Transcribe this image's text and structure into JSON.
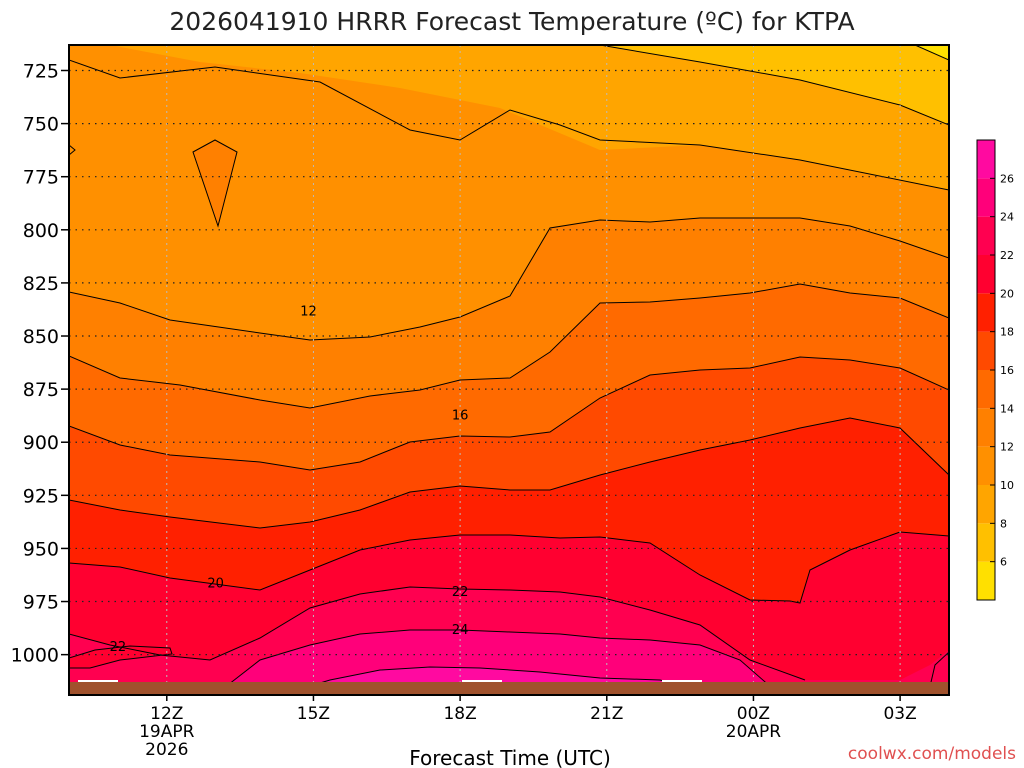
{
  "chart_data": {
    "type": "heatmap",
    "title": "2026041910 HRRR Forecast Temperature (ºC) for KTPA",
    "xlabel": "Forecast Time (UTC)",
    "ylabel": "",
    "x_ticks": [
      {
        "hours": 12,
        "label": "12Z",
        "sub1": "19APR",
        "sub2": "2026"
      },
      {
        "hours": 15,
        "label": "15Z",
        "sub1": "",
        "sub2": ""
      },
      {
        "hours": 18,
        "label": "18Z",
        "sub1": "",
        "sub2": ""
      },
      {
        "hours": 21,
        "label": "21Z",
        "sub1": "",
        "sub2": ""
      },
      {
        "hours": 24,
        "label": "00Z",
        "sub1": "20APR",
        "sub2": ""
      },
      {
        "hours": 27,
        "label": "03Z",
        "sub1": "",
        "sub2": ""
      }
    ],
    "xlim_hours": [
      10,
      28
    ],
    "y_ticks": [
      725,
      750,
      775,
      800,
      825,
      850,
      875,
      900,
      925,
      950,
      975,
      1000
    ],
    "ylim_hpa": [
      713,
      1019
    ],
    "y_reversed": true,
    "grid": true,
    "colorbar": {
      "levels": [
        4,
        6,
        8,
        10,
        12,
        14,
        16,
        18,
        20,
        22,
        24,
        26,
        28
      ],
      "tick_labels": [
        6,
        8,
        10,
        12,
        14,
        16,
        18,
        20,
        22,
        24,
        26
      ],
      "colors": [
        "#ffe000",
        "#ffc000",
        "#ffa500",
        "#ff9000",
        "#ff8000",
        "#ff6a00",
        "#ff4a00",
        "#ff2000",
        "#ff0030",
        "#ff0050",
        "#ff007a",
        "#ff0aa0"
      ]
    },
    "contour_labels": [
      {
        "text": "12",
        "hours": 14.9,
        "hpa": 838
      },
      {
        "text": "16",
        "hours": 18.0,
        "hpa": 887
      },
      {
        "text": "20",
        "hours": 13.0,
        "hpa": 966
      },
      {
        "text": "22",
        "hours": 18.0,
        "hpa": 970
      },
      {
        "text": "24",
        "hours": 18.0,
        "hpa": 988
      },
      {
        "text": "22",
        "hours": 11.0,
        "hpa": 996
      }
    ],
    "watermark": "coolwx.com/models"
  }
}
